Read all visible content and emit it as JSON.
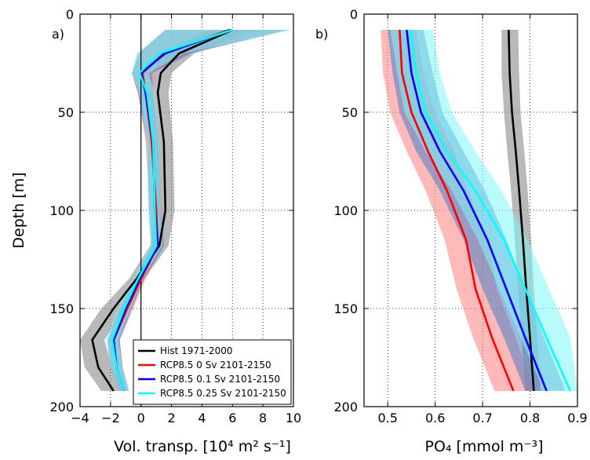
{
  "series_colors": {
    "hist": "#000000",
    "rcp0": "#ff0000",
    "rcp01": "#0000ff",
    "rcp025": "#00ffff"
  },
  "band_colors": {
    "hist": "#808080",
    "rcp0": "#ff8080",
    "rcp01": "#4a7fc8",
    "rcp025": "#7ff5f5"
  },
  "legend": {
    "placement": "lower-right",
    "entries": [
      {
        "key": "hist",
        "label": "Hist 1971-2000"
      },
      {
        "key": "rcp0",
        "label": "RCP8.5 0 Sv 2101-2150"
      },
      {
        "key": "rcp01",
        "label": "RCP8.5 0.1 Sv 2101-2150"
      },
      {
        "key": "rcp025",
        "label": "RCP8.5 0.25 Sv 2101-2150"
      }
    ]
  },
  "chart_data": [
    {
      "type": "line",
      "panel_label": "a)",
      "xlabel": "Vol. transp. [10⁴ m² s⁻¹]",
      "ylabel": "Depth [m]",
      "xlim": [
        -4,
        10
      ],
      "ylim": [
        200,
        0
      ],
      "xticks": [
        -4,
        -2,
        0,
        2,
        4,
        6,
        8,
        10
      ],
      "xtick_labels": [
        "−4",
        "−2",
        "0",
        "2",
        "4",
        "6",
        "8",
        "10"
      ],
      "yticks": [
        0,
        50,
        100,
        150,
        200
      ],
      "grid": true,
      "zero_line": true,
      "depth": [
        8,
        20,
        30,
        40,
        65,
        100,
        118,
        135,
        150,
        166,
        180,
        192
      ],
      "series": [
        {
          "key": "hist",
          "values": [
            6.0,
            2.5,
            1.3,
            1.1,
            1.5,
            1.6,
            1.2,
            -0.3,
            -1.8,
            -3.2,
            -2.8,
            -1.8
          ],
          "band": [
            [
              4.5,
              7.5
            ],
            [
              1.5,
              3.5
            ],
            [
              0.7,
              2.0
            ],
            [
              0.5,
              1.8
            ],
            [
              0.9,
              2.1
            ],
            [
              1.0,
              2.2
            ],
            [
              0.6,
              1.8
            ],
            [
              -0.8,
              0.2
            ],
            [
              -2.6,
              -1.0
            ],
            [
              -4.0,
              -2.4
            ],
            [
              -3.7,
              -1.9
            ],
            [
              -2.6,
              -1.0
            ]
          ]
        },
        {
          "key": "rcp0",
          "values": [
            5.8,
            1.5,
            0.1,
            0.3,
            0.7,
            1.0,
            1.1,
            0.0,
            -0.9,
            -1.8,
            -1.6,
            -1.1
          ],
          "band": [
            [
              1.6,
              9.5
            ],
            [
              -0.2,
              3.2
            ],
            [
              -0.6,
              0.8
            ],
            [
              -0.2,
              0.8
            ],
            [
              0.3,
              1.1
            ],
            [
              0.6,
              1.4
            ],
            [
              0.7,
              1.5
            ],
            [
              -0.3,
              0.3
            ],
            [
              -1.3,
              -0.5
            ],
            [
              -2.2,
              -1.4
            ],
            [
              -2.0,
              -1.2
            ],
            [
              -1.4,
              -0.8
            ]
          ]
        },
        {
          "key": "rcp01",
          "values": [
            5.9,
            1.6,
            0.0,
            0.3,
            0.8,
            0.9,
            1.1,
            -0.1,
            -1.0,
            -1.8,
            -1.6,
            -1.1
          ],
          "band": [
            [
              1.6,
              9.7
            ],
            [
              -0.1,
              3.3
            ],
            [
              -0.6,
              0.7
            ],
            [
              -0.2,
              0.8
            ],
            [
              0.4,
              1.2
            ],
            [
              0.5,
              1.3
            ],
            [
              0.7,
              1.5
            ],
            [
              -0.4,
              0.2
            ],
            [
              -1.4,
              -0.6
            ],
            [
              -2.2,
              -1.4
            ],
            [
              -2.0,
              -1.2
            ],
            [
              -1.4,
              -0.8
            ]
          ]
        },
        {
          "key": "rcp025",
          "values": [
            6.0,
            1.2,
            -0.1,
            0.4,
            0.8,
            0.9,
            1.0,
            -0.2,
            -1.1,
            -1.9,
            -1.6,
            -1.1
          ],
          "band": [
            [
              1.6,
              9.9
            ],
            [
              -0.3,
              2.8
            ],
            [
              -0.6,
              0.5
            ],
            [
              -0.1,
              0.9
            ],
            [
              0.4,
              1.2
            ],
            [
              0.5,
              1.3
            ],
            [
              0.6,
              1.4
            ],
            [
              -0.5,
              0.1
            ],
            [
              -1.5,
              -0.7
            ],
            [
              -2.3,
              -1.5
            ],
            [
              -2.0,
              -1.2
            ],
            [
              -1.4,
              -0.8
            ]
          ]
        }
      ]
    },
    {
      "type": "line",
      "panel_label": "b)",
      "xlabel": "PO₄ [mmol m⁻³]",
      "ylabel": "",
      "xlim": [
        0.45,
        0.9
      ],
      "ylim": [
        200,
        0
      ],
      "xticks": [
        0.5,
        0.6,
        0.7,
        0.8,
        0.9
      ],
      "xtick_labels": [
        "0.5",
        "0.6",
        "0.7",
        "0.8",
        "0.9"
      ],
      "yticks": [
        0,
        50,
        100,
        150,
        200
      ],
      "grid": true,
      "zero_line": false,
      "depth": [
        8,
        30,
        50,
        70,
        90,
        115,
        140,
        165,
        192
      ],
      "series": [
        {
          "key": "hist",
          "values": [
            0.755,
            0.757,
            0.762,
            0.77,
            0.777,
            0.785,
            0.792,
            0.8,
            0.808
          ],
          "band": [
            [
              0.74,
              0.775
            ],
            [
              0.74,
              0.777
            ],
            [
              0.745,
              0.78
            ],
            [
              0.752,
              0.788
            ],
            [
              0.76,
              0.795
            ],
            [
              0.768,
              0.802
            ],
            [
              0.775,
              0.808
            ],
            [
              0.782,
              0.815
            ],
            [
              0.79,
              0.822
            ]
          ]
        },
        {
          "key": "rcp0",
          "values": [
            0.525,
            0.53,
            0.55,
            0.585,
            0.625,
            0.665,
            0.685,
            0.72,
            0.765
          ],
          "band": [
            [
              0.485,
              0.56
            ],
            [
              0.49,
              0.575
            ],
            [
              0.505,
              0.6
            ],
            [
              0.54,
              0.64
            ],
            [
              0.58,
              0.67
            ],
            [
              0.62,
              0.71
            ],
            [
              0.645,
              0.73
            ],
            [
              0.68,
              0.77
            ],
            [
              0.725,
              0.81
            ]
          ]
        },
        {
          "key": "rcp01",
          "values": [
            0.54,
            0.55,
            0.57,
            0.61,
            0.66,
            0.71,
            0.75,
            0.79,
            0.835
          ],
          "band": [
            [
              0.5,
              0.575
            ],
            [
              0.51,
              0.595
            ],
            [
              0.525,
              0.615
            ],
            [
              0.56,
              0.66
            ],
            [
              0.61,
              0.705
            ],
            [
              0.66,
              0.75
            ],
            [
              0.7,
              0.79
            ],
            [
              0.745,
              0.83
            ],
            [
              0.79,
              0.875
            ]
          ]
        },
        {
          "key": "rcp025",
          "values": [
            0.548,
            0.56,
            0.58,
            0.625,
            0.685,
            0.745,
            0.79,
            0.835,
            0.885
          ],
          "band": [
            [
              0.505,
              0.595
            ],
            [
              0.52,
              0.61
            ],
            [
              0.535,
              0.635
            ],
            [
              0.58,
              0.685
            ],
            [
              0.635,
              0.74
            ],
            [
              0.69,
              0.795
            ],
            [
              0.735,
              0.84
            ],
            [
              0.78,
              0.885
            ],
            [
              0.83,
              0.9
            ]
          ]
        }
      ]
    }
  ]
}
